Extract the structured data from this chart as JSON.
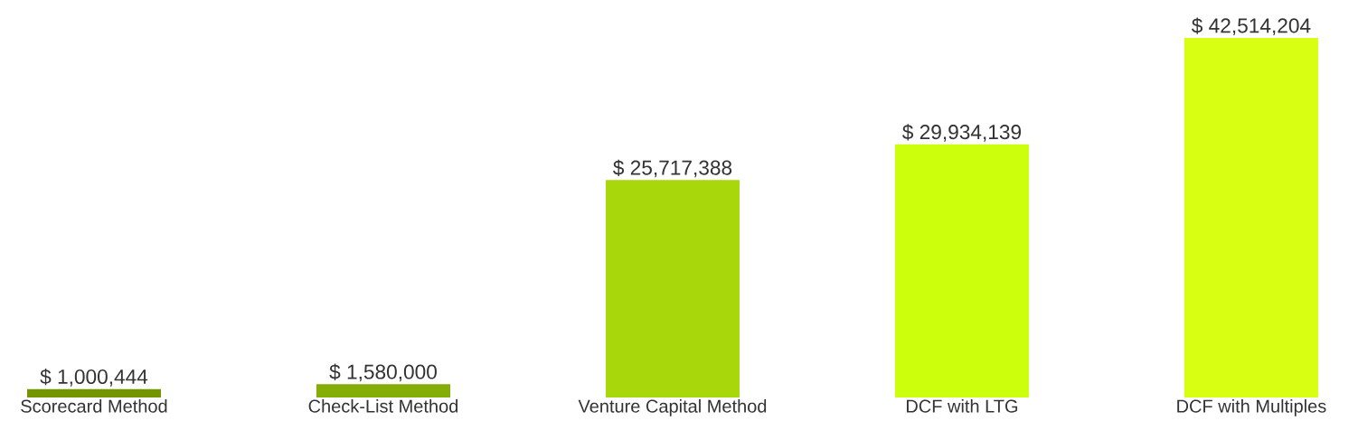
{
  "chart_data": {
    "type": "bar",
    "categories": [
      "Scorecard Method",
      "Check-List Method",
      "Venture Capital Method",
      "DCF with LTG",
      "DCF with Multiples"
    ],
    "values": [
      1000444,
      1580000,
      25717388,
      29934139,
      42514204
    ],
    "value_labels": [
      "$ 1,000,444",
      "$ 1,580,000",
      "$ 25,717,388",
      "$ 29,934,139",
      "$ 42,514,204"
    ],
    "colors": [
      "#739600",
      "#85ad08",
      "#a8d80b",
      "#cbff0c",
      "#d8ff12"
    ]
  }
}
